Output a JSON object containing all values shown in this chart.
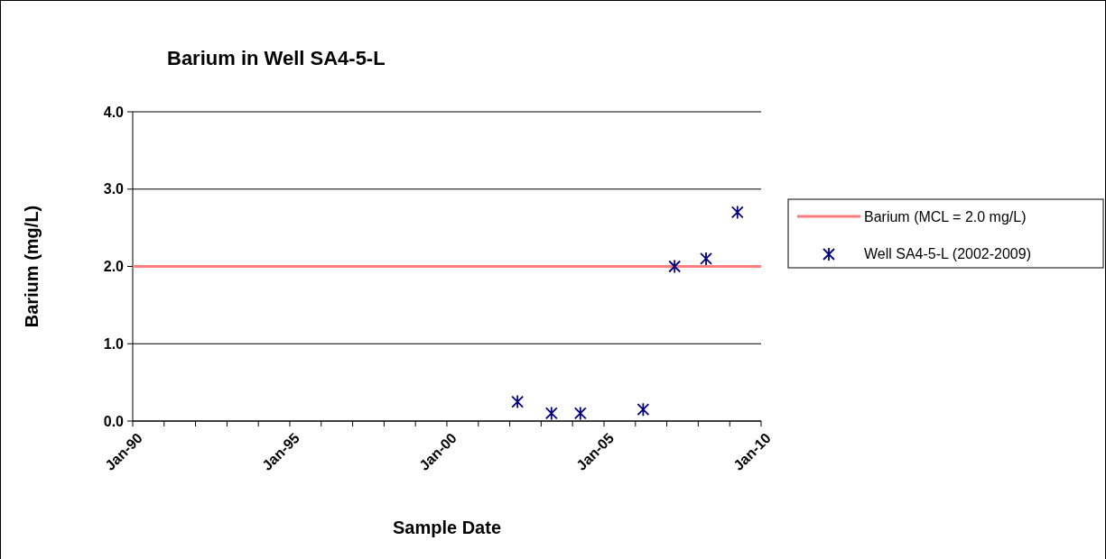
{
  "chart_data": {
    "type": "scatter",
    "title": "Barium in Well SA4-5-L",
    "xlabel": "Sample Date",
    "ylabel": "Barium (mg/L)",
    "xlim": [
      "1990-01",
      "2010-01"
    ],
    "xticks": [
      {
        "value": "1990-01",
        "label": "Jan-90"
      },
      {
        "value": "1991-01",
        "label": null
      },
      {
        "value": "1992-01",
        "label": null
      },
      {
        "value": "1993-01",
        "label": null
      },
      {
        "value": "1994-01",
        "label": null
      },
      {
        "value": "1995-01",
        "label": "Jan-95"
      },
      {
        "value": "1996-01",
        "label": null
      },
      {
        "value": "1997-01",
        "label": null
      },
      {
        "value": "1998-01",
        "label": null
      },
      {
        "value": "1999-01",
        "label": null
      },
      {
        "value": "2000-01",
        "label": "Jan-00"
      },
      {
        "value": "2001-01",
        "label": null
      },
      {
        "value": "2002-01",
        "label": null
      },
      {
        "value": "2003-01",
        "label": null
      },
      {
        "value": "2004-01",
        "label": null
      },
      {
        "value": "2005-01",
        "label": "Jan-05"
      },
      {
        "value": "2006-01",
        "label": null
      },
      {
        "value": "2007-01",
        "label": null
      },
      {
        "value": "2008-01",
        "label": null
      },
      {
        "value": "2009-01",
        "label": null
      },
      {
        "value": "2010-01",
        "label": "Jan-10"
      }
    ],
    "ylim": [
      0,
      4
    ],
    "yticks": [
      {
        "value": 0,
        "label": "0.0"
      },
      {
        "value": 1,
        "label": "1.0"
      },
      {
        "value": 2,
        "label": "2.0"
      },
      {
        "value": 3,
        "label": "3.0"
      },
      {
        "value": 4,
        "label": "4.0"
      }
    ],
    "grid": "y",
    "legend": "right",
    "marker": "cross",
    "ref_lines": [
      {
        "axis": "y",
        "value": 2,
        "label": "Barium (MCL = 2.0 mg/L)",
        "color": "#ff7f7f"
      }
    ],
    "series": [
      {
        "name": "Well SA4-5-L (2002-2009)",
        "color": "#000080",
        "x": [
          "2002-04",
          "2003-05",
          "2004-04",
          "2006-04",
          "2007-04",
          "2008-04",
          "2009-04"
        ],
        "values": [
          0.25,
          0.1,
          0.1,
          0.15,
          2.0,
          2.1,
          2.7
        ]
      }
    ]
  }
}
